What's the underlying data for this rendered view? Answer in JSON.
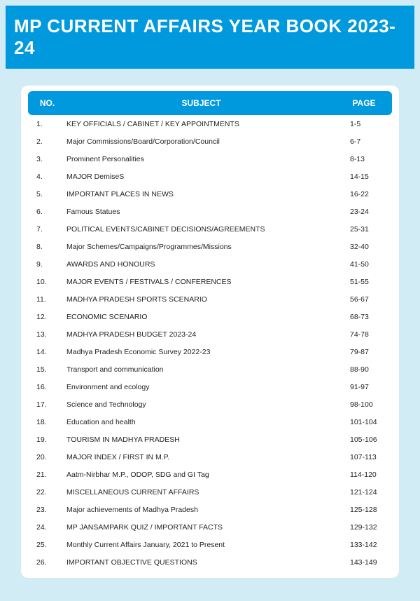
{
  "title": "MP CURRENT AFFAIRS YEAR BOOK 2023-24",
  "colors": {
    "page_background": "#d1ecf5",
    "header_bar": "#0099dd",
    "header_text": "#ffffff",
    "card_background": "#ffffff",
    "row_text": "#222222"
  },
  "table": {
    "columns": {
      "no": "NO.",
      "subject": "SUBJECT",
      "page": "PAGE"
    },
    "rows": [
      {
        "no": "1.",
        "subject": "KEY OFFICIALS / CABINET / KEY APPOINTMENTS",
        "page": "1-5"
      },
      {
        "no": "2.",
        "subject": "Major Commissions/Board/Corporation/Council",
        "page": "6-7"
      },
      {
        "no": "3.",
        "subject": "Prominent Personalities",
        "page": "8-13"
      },
      {
        "no": "4.",
        "subject": "MAJOR DemiseS",
        "page": "14-15"
      },
      {
        "no": "5.",
        "subject": "IMPORTANT PLACES IN NEWS",
        "page": "16-22"
      },
      {
        "no": "6.",
        "subject": "Famous Statues",
        "page": "23-24"
      },
      {
        "no": "7.",
        "subject": "POLITICAL EVENTS/CABINET DECISIONS/AGREEMENTS",
        "page": "25-31"
      },
      {
        "no": "8.",
        "subject": "Major Schemes/Campaigns/Programmes/Missions",
        "page": "32-40"
      },
      {
        "no": "9.",
        "subject": "AWARDS AND HONOURS",
        "page": "41-50"
      },
      {
        "no": "10.",
        "subject": "MAJOR EVENTS / FESTIVALS / CONFERENCES",
        "page": "51-55"
      },
      {
        "no": "11.",
        "subject": "MADHYA PRADESH SPORTS SCENARIO",
        "page": "56-67"
      },
      {
        "no": "12.",
        "subject": "ECONOMIC SCENARIO",
        "page": "68-73"
      },
      {
        "no": "13.",
        "subject": "MADHYA PRADESH BUDGET  2023-24",
        "page": "74-78"
      },
      {
        "no": "14.",
        "subject": "Madhya Pradesh Economic Survey 2022-23",
        "page": "79-87"
      },
      {
        "no": "15.",
        "subject": "Transport and communication",
        "page": "88-90"
      },
      {
        "no": "16.",
        "subject": "Environment and ecology",
        "page": "91-97"
      },
      {
        "no": "17.",
        "subject": "Science and Technology",
        "page": "98-100"
      },
      {
        "no": "18.",
        "subject": "Education and health",
        "page": "101-104"
      },
      {
        "no": "19.",
        "subject": "TOURISM IN MADHYA PRADESH",
        "page": "105-106"
      },
      {
        "no": "20.",
        "subject": "MAJOR INDEX / FIRST IN M.P.",
        "page": "107-113"
      },
      {
        "no": "21.",
        "subject": "Aatm-Nirbhar M.P., ODOP, SDG and GI Tag",
        "page": "114-120"
      },
      {
        "no": "22.",
        "subject": "MISCELLANEOUS CURRENT AFFAIRS",
        "page": "121-124"
      },
      {
        "no": "23.",
        "subject": "Major achievements of Madhya Pradesh",
        "page": "125-128"
      },
      {
        "no": "24.",
        "subject": "MP JANSAMPARK QUIZ / IMPORTANT FACTS",
        "page": "129-132"
      },
      {
        "no": "25.",
        "subject": "Monthly Current Affairs January, 2021 to Present",
        "page": "133-142"
      },
      {
        "no": "26.",
        "subject": "IMPORTANT OBJECTIVE QUESTIONS",
        "page": "143-149"
      }
    ]
  }
}
